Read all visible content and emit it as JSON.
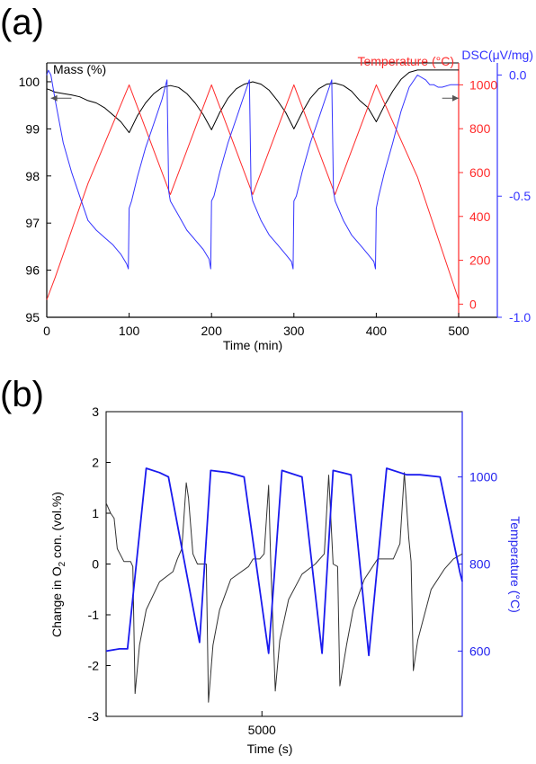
{
  "chart_data": [
    {
      "panel": "(a)",
      "type": "line",
      "xlabel": "Time (min)",
      "xlim": [
        0,
        500
      ],
      "x_ticks": [
        "0",
        "100",
        "200",
        "300",
        "400",
        "500"
      ],
      "axes": {
        "mass": {
          "label": "Mass (%)",
          "ylim": [
            95,
            100.4
          ],
          "ticks": [
            "95",
            "96",
            "97",
            "98",
            "99",
            "100"
          ],
          "color": "#000000"
        },
        "temperature": {
          "label": "Temperature (°C)",
          "ylim": [
            -60,
            1100
          ],
          "ticks": [
            "0",
            "200",
            "400",
            "600",
            "800",
            "1000"
          ],
          "color": "#ff2a2a"
        },
        "dsc": {
          "label": "DSC(μV/mg)",
          "ylim": [
            -1.0,
            0.05
          ],
          "ticks": [
            "-1.0",
            "-0.5",
            "0.0"
          ],
          "color": "#3333ff"
        }
      },
      "series": [
        {
          "name": "Mass (%)",
          "axis": "mass",
          "color": "#000000",
          "x": [
            0,
            5,
            10,
            20,
            30,
            40,
            50,
            60,
            70,
            80,
            90,
            100,
            110,
            120,
            130,
            140,
            150,
            160,
            170,
            180,
            190,
            200,
            210,
            220,
            230,
            240,
            250,
            260,
            270,
            280,
            290,
            300,
            310,
            320,
            330,
            340,
            350,
            360,
            370,
            380,
            390,
            400,
            410,
            420,
            430,
            440,
            450,
            460,
            470,
            480,
            490,
            500
          ],
          "y": [
            99.85,
            99.82,
            99.78,
            99.75,
            99.72,
            99.68,
            99.6,
            99.55,
            99.45,
            99.3,
            99.15,
            98.92,
            99.28,
            99.55,
            99.75,
            99.88,
            99.92,
            99.88,
            99.75,
            99.55,
            99.3,
            98.98,
            99.35,
            99.65,
            99.85,
            99.95,
            100.0,
            99.95,
            99.82,
            99.6,
            99.35,
            99.0,
            99.35,
            99.65,
            99.85,
            99.95,
            99.97,
            99.92,
            99.8,
            99.6,
            99.45,
            99.15,
            99.5,
            99.8,
            100.05,
            100.2,
            100.25,
            100.25,
            100.25,
            100.25,
            100.25,
            100.25
          ]
        },
        {
          "name": "Temperature (°C)",
          "axis": "temperature",
          "color": "#ff2a2a",
          "x": [
            0,
            10,
            50,
            100,
            150,
            200,
            250,
            300,
            350,
            400,
            450,
            500
          ],
          "y": [
            20,
            120,
            550,
            1000,
            500,
            1000,
            500,
            1000,
            500,
            1000,
            580,
            20
          ]
        },
        {
          "name": "DSC(μV/mg)",
          "axis": "dsc",
          "color": "#3333ff",
          "x": [
            0,
            2,
            5,
            10,
            20,
            30,
            40,
            50,
            60,
            70,
            80,
            90,
            97,
            99,
            100,
            103,
            110,
            120,
            130,
            140,
            146,
            148,
            150,
            160,
            170,
            180,
            190,
            197,
            199,
            200,
            203,
            210,
            220,
            230,
            240,
            246,
            248,
            250,
            260,
            270,
            280,
            290,
            297,
            299,
            300,
            303,
            310,
            320,
            330,
            340,
            346,
            348,
            350,
            360,
            370,
            380,
            390,
            397,
            399,
            400,
            403,
            410,
            420,
            430,
            440,
            450,
            460,
            465,
            470,
            475,
            480,
            490,
            500
          ],
          "y": [
            0.0,
            0.02,
            0.0,
            -0.1,
            -0.28,
            -0.4,
            -0.5,
            -0.6,
            -0.64,
            -0.67,
            -0.7,
            -0.74,
            -0.78,
            -0.8,
            -0.55,
            -0.52,
            -0.42,
            -0.3,
            -0.2,
            -0.1,
            -0.02,
            -0.48,
            -0.52,
            -0.58,
            -0.64,
            -0.68,
            -0.72,
            -0.76,
            -0.8,
            -0.52,
            -0.5,
            -0.4,
            -0.28,
            -0.18,
            -0.08,
            -0.02,
            -0.48,
            -0.52,
            -0.6,
            -0.66,
            -0.7,
            -0.74,
            -0.77,
            -0.8,
            -0.52,
            -0.5,
            -0.4,
            -0.28,
            -0.18,
            -0.08,
            -0.02,
            -0.48,
            -0.52,
            -0.6,
            -0.66,
            -0.7,
            -0.74,
            -0.77,
            -0.8,
            -0.55,
            -0.5,
            -0.4,
            -0.28,
            -0.15,
            -0.05,
            0.0,
            -0.02,
            -0.04,
            -0.04,
            -0.05,
            -0.05,
            -0.04,
            -0.04
          ]
        }
      ],
      "arrows": [
        {
          "from": [
            30,
            99.65
          ],
          "to": [
            5,
            99.65
          ],
          "axis": "mass",
          "color": "#555555"
        },
        {
          "from": [
            480,
            99.65
          ],
          "to": [
            500,
            99.65
          ],
          "axis": "mass",
          "color": "#555555"
        }
      ]
    },
    {
      "panel": "(b)",
      "type": "line",
      "xlabel": "Time (s)",
      "xlim": [
        1500,
        9500
      ],
      "x_ticks": [
        "5000"
      ],
      "axes": {
        "o2": {
          "label_parts": [
            "Change in O",
            "2",
            " con. (vol.%)"
          ],
          "ylim": [
            -3,
            3
          ],
          "ticks": [
            "-3",
            "-2",
            "-1",
            "0",
            "1",
            "2",
            "3"
          ],
          "color": "#000000"
        },
        "temperature": {
          "label": "Temperature (°C)",
          "ylim": [
            450,
            1150
          ],
          "ticks": [
            "600",
            "800",
            "1000"
          ],
          "color": "#2222ee"
        }
      },
      "series": [
        {
          "name": "Change in O2 con. (vol.%)",
          "axis": "o2",
          "color": "#333333",
          "x": [
            1500,
            1600,
            1680,
            1750,
            1900,
            2050,
            2100,
            2150,
            2250,
            2400,
            2700,
            3000,
            3100,
            3200,
            3300,
            3350,
            3450,
            3550,
            3650,
            3750,
            3800,
            3900,
            4050,
            4300,
            4700,
            4800,
            4950,
            5050,
            5150,
            5200,
            5300,
            5400,
            5600,
            5900,
            6200,
            6400,
            6500,
            6600,
            6700,
            6750,
            6900,
            7050,
            7300,
            7600,
            7950,
            8100,
            8200,
            8300,
            8350,
            8400,
            8500,
            8800,
            9100,
            9300,
            9500
          ],
          "y": [
            1.2,
            1.0,
            0.9,
            0.3,
            0.05,
            0.05,
            -0.05,
            -2.55,
            -1.6,
            -0.9,
            -0.35,
            -0.15,
            0.1,
            0.3,
            1.6,
            1.3,
            0.2,
            0.0,
            0.0,
            0.0,
            -2.72,
            -1.6,
            -0.9,
            -0.3,
            -0.05,
            0.1,
            0.1,
            0.2,
            1.55,
            0.0,
            -2.5,
            -1.5,
            -0.7,
            -0.2,
            0.0,
            0.2,
            1.75,
            0.0,
            -0.05,
            -2.4,
            -1.6,
            -0.9,
            -0.3,
            0.1,
            0.1,
            0.4,
            1.8,
            0.5,
            0.05,
            -2.1,
            -1.5,
            -0.5,
            -0.1,
            0.1,
            0.2
          ]
        },
        {
          "name": "Temperature (°C)",
          "axis": "temperature",
          "color": "#1a1aee",
          "x": [
            1500,
            1800,
            1980,
            2400,
            2700,
            2900,
            3600,
            3850,
            4250,
            4600,
            5150,
            5450,
            5900,
            6350,
            6600,
            7000,
            7400,
            7800,
            8250,
            8550,
            9000,
            9450,
            9500
          ],
          "y": [
            600,
            605,
            605,
            1020,
            1010,
            1000,
            620,
            1015,
            1010,
            1000,
            595,
            1015,
            1000,
            595,
            1015,
            1005,
            590,
            1020,
            1005,
            1005,
            1000,
            780,
            760
          ]
        }
      ]
    }
  ]
}
